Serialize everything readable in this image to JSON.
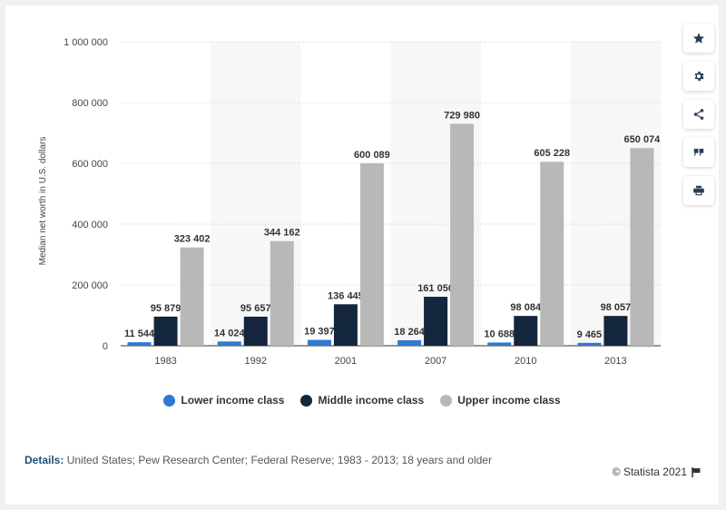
{
  "chart_data": {
    "type": "bar",
    "categories": [
      "1983",
      "1992",
      "2001",
      "2007",
      "2010",
      "2013"
    ],
    "series": [
      {
        "name": "Lower income class",
        "color": "#2e7ad1",
        "values": [
          11544,
          14024,
          19397,
          18264,
          10688,
          9465
        ],
        "labels": [
          "11 544",
          "14 024",
          "19 397",
          "18 264",
          "10 688",
          "9 465"
        ]
      },
      {
        "name": "Middle income class",
        "color": "#14263d",
        "values": [
          95879,
          95657,
          136445,
          161050,
          98084,
          98057
        ],
        "labels": [
          "95 879",
          "95 657",
          "136 445",
          "161 050",
          "98 084",
          "98 057"
        ]
      },
      {
        "name": "Upper income class",
        "color": "#b8b8b8",
        "values": [
          323402,
          344162,
          600089,
          729980,
          605228,
          650074
        ],
        "labels": [
          "323 402",
          "344 162",
          "600 089",
          "729 980",
          "605 228",
          "650 074"
        ]
      }
    ],
    "ylabel": "Median net worth in U.S. dollars",
    "ylim": [
      0,
      1000000
    ],
    "yticks": [
      0,
      200000,
      400000,
      600000,
      800000,
      1000000
    ],
    "ytick_labels": [
      "0",
      "200 000",
      "400 000",
      "600 000",
      "800 000",
      "1 000 000"
    ],
    "grid": true,
    "legend": "bottom"
  },
  "sidebar": {
    "buttons": [
      {
        "icon": "star-icon"
      },
      {
        "icon": "gear-icon"
      },
      {
        "icon": "share-icon"
      },
      {
        "icon": "quote-icon"
      },
      {
        "icon": "print-icon"
      }
    ]
  },
  "footer": {
    "details_label": "Details:",
    "details_text": " United States; Pew Research Center; Federal Reserve; 1983 - 2013; 18 years and older",
    "credit": "© Statista 2021"
  }
}
